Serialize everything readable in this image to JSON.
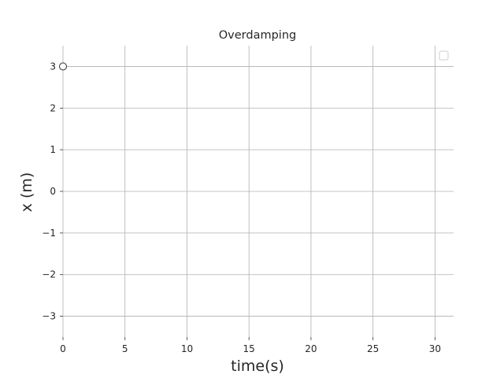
{
  "chart_data": {
    "type": "line",
    "title": "Overdamping",
    "xlabel": "time(s)",
    "ylabel": "x (m)",
    "xlim": [
      0,
      31.5
    ],
    "ylim": [
      -3.5,
      3.5
    ],
    "xticks": [
      0,
      5,
      10,
      15,
      20,
      25,
      30
    ],
    "yticks": [
      -3,
      -2,
      -1,
      0,
      1,
      2,
      3
    ],
    "xtick_labels": [
      "0",
      "5",
      "10",
      "15",
      "20",
      "25",
      "30"
    ],
    "ytick_labels": [
      "−3",
      "−2",
      "−1",
      "0",
      "1",
      "2",
      "3"
    ],
    "grid": true,
    "legend": {
      "position": "top-right",
      "entries": []
    },
    "series": [
      {
        "x": [
          0
        ],
        "y": [
          3
        ],
        "marker": "circle",
        "marker_fill": "#ffffff",
        "color": "#333333"
      }
    ]
  }
}
